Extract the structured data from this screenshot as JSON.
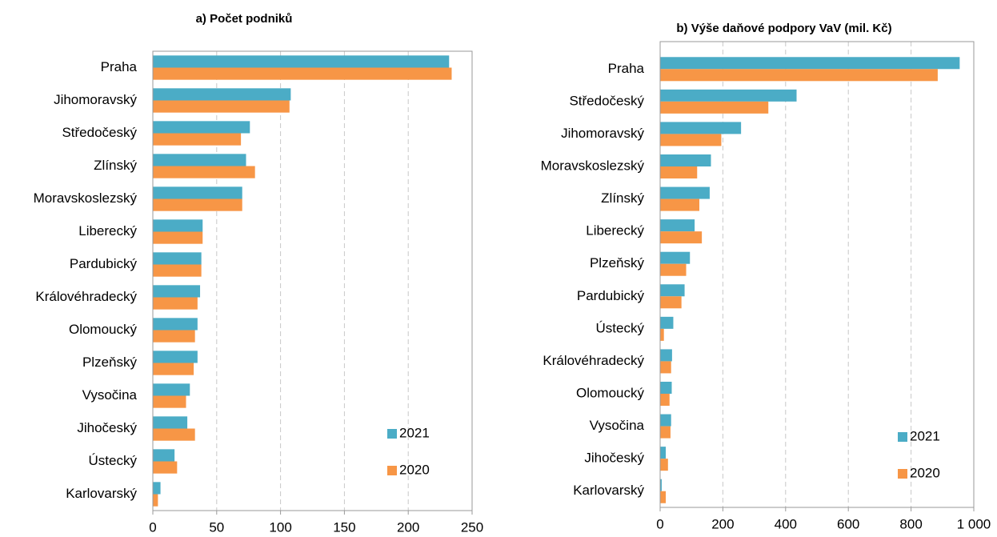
{
  "chart_data": [
    {
      "type": "bar",
      "orientation": "horizontal",
      "title": "a) Počet podniků",
      "categories": [
        "Praha",
        "Jihomoravský",
        "Středočeský",
        "Zlínský",
        "Moravskoslezský",
        "Liberecký",
        "Pardubický",
        "Královéhradecký",
        "Olomoucký",
        "Plzeňský",
        "Vysočina",
        "Jihočeský",
        "Ústecký",
        "Karlovarský"
      ],
      "series": [
        {
          "name": "2021",
          "color": "#4bacc6",
          "values": [
            232,
            108,
            76,
            73,
            70,
            39,
            38,
            37,
            35,
            35,
            29,
            27,
            17,
            6
          ]
        },
        {
          "name": "2020",
          "color": "#f79646",
          "values": [
            234,
            107,
            69,
            80,
            70,
            39,
            38,
            35,
            33,
            32,
            26,
            33,
            19,
            4
          ]
        }
      ],
      "xlim": [
        0,
        250
      ],
      "xticks": [
        0,
        50,
        100,
        150,
        200,
        250
      ],
      "grid": true,
      "legend": "lower right"
    },
    {
      "type": "bar",
      "orientation": "horizontal",
      "title": "b) Výše daňové podpory VaV (mil. Kč)",
      "categories": [
        "Praha",
        "Středočeský",
        "Jihomoravský",
        "Moravskoslezský",
        "Zlínský",
        "Liberecký",
        "Plzeňský",
        "Pardubický",
        "Ústecký",
        "Královéhradecký",
        "Olomoucký",
        "Vysočina",
        "Jihočeský",
        "Karlovarský"
      ],
      "series": [
        {
          "name": "2021",
          "color": "#4bacc6",
          "values": [
            955,
            435,
            258,
            162,
            158,
            110,
            95,
            78,
            42,
            38,
            37,
            35,
            18,
            5
          ]
        },
        {
          "name": "2020",
          "color": "#f79646",
          "values": [
            885,
            345,
            195,
            118,
            125,
            133,
            83,
            68,
            12,
            35,
            30,
            33,
            25,
            18
          ]
        }
      ],
      "xlim": [
        0,
        1000
      ],
      "xticks": [
        0,
        200,
        400,
        600,
        800,
        {
          "value": 1000,
          "label": "1 000"
        }
      ],
      "grid": true,
      "legend": "lower right"
    }
  ]
}
